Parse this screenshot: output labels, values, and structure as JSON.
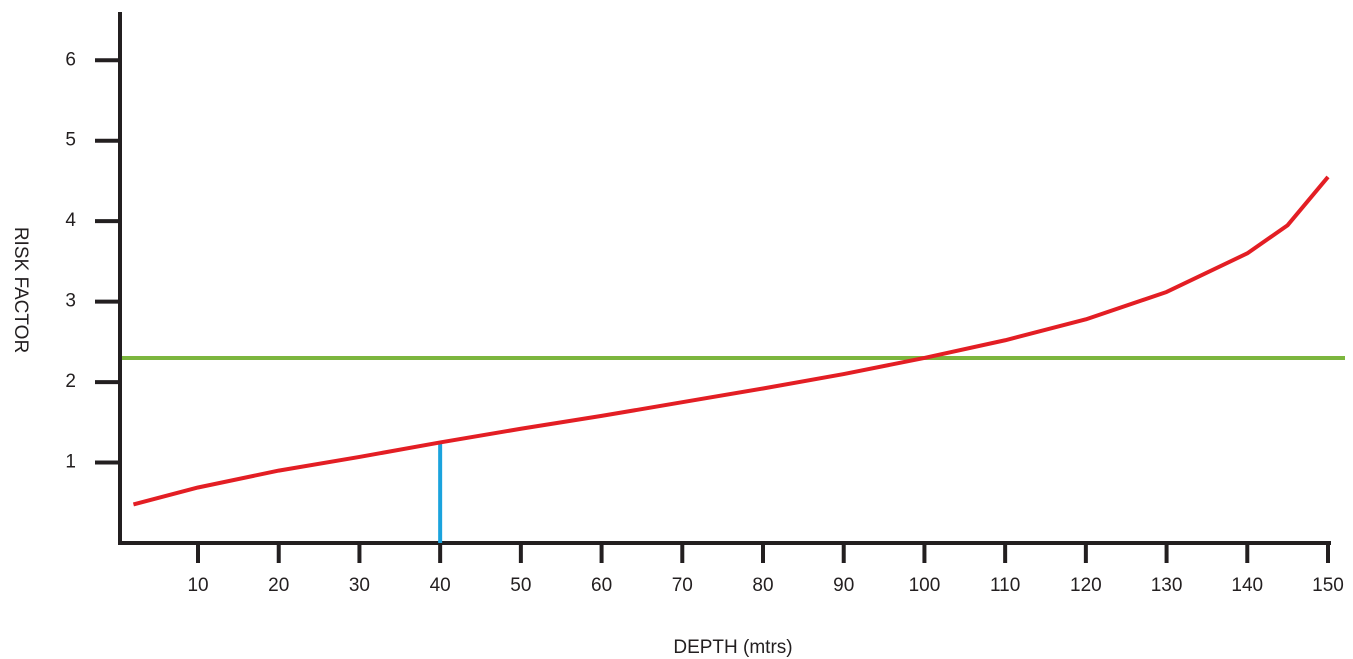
{
  "chart_data": {
    "type": "line",
    "x_label": "DEPTH (mtrs)",
    "y_label": "RISK FACTOR",
    "x": [
      2,
      10,
      20,
      30,
      40,
      50,
      60,
      70,
      80,
      90,
      100,
      110,
      120,
      130,
      140,
      145,
      150
    ],
    "series": [
      {
        "color": "#e31e24",
        "values": [
          0.48,
          0.69,
          0.9,
          1.07,
          1.25,
          1.42,
          1.58,
          1.75,
          1.92,
          2.1,
          2.3,
          2.52,
          2.78,
          3.12,
          3.6,
          3.95,
          4.55
        ]
      }
    ],
    "reference_lines": [
      {
        "value": 2.3,
        "color": "#7cb63e"
      }
    ],
    "markers": [
      {
        "x": 40,
        "y": 1.25,
        "color": "#1aa3dd"
      }
    ],
    "xlim": [
      0,
      150
    ],
    "ylim": [
      0,
      6.6
    ],
    "xticks": [
      10,
      20,
      30,
      40,
      50,
      60,
      70,
      80,
      90,
      100,
      110,
      120,
      130,
      140,
      150
    ],
    "yticks": [
      1,
      2,
      3,
      4,
      5,
      6
    ]
  }
}
